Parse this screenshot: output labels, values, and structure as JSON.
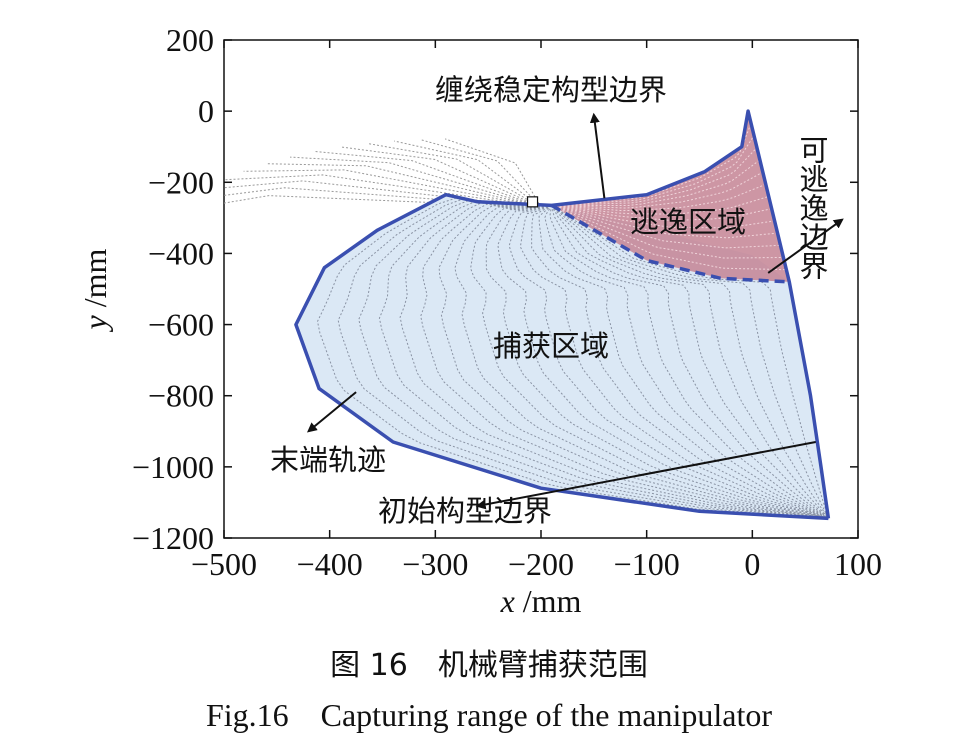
{
  "chart_data": {
    "type": "area",
    "xlabel_var": "x",
    "xlabel_unit": " /mm",
    "ylabel_var": "y",
    "ylabel_unit": " /mm",
    "xlim": [
      -500,
      100
    ],
    "ylim": [
      -1200,
      200
    ],
    "xticks": [
      -500,
      -400,
      -300,
      -200,
      -100,
      0,
      100
    ],
    "yticks": [
      200,
      0,
      -200,
      -400,
      -600,
      -800,
      -1000,
      -1200
    ],
    "xtick_labels": [
      "−500",
      "−400",
      "−300",
      "−200",
      "−100",
      "0",
      "100"
    ],
    "ytick_labels": [
      "200",
      "0",
      "−200",
      "−400",
      "−600",
      "−800",
      "−1000",
      "−1200"
    ],
    "grid": false,
    "regions": [
      {
        "name": "捕获区域",
        "fill": "#dbe8f5",
        "boundary": [
          [
            -290,
            -235
          ],
          [
            -260,
            -255
          ],
          [
            -190,
            -265
          ],
          [
            -100,
            -325
          ],
          [
            -60,
            -360
          ],
          [
            0,
            -405
          ],
          [
            35,
            -480
          ],
          [
            55,
            -800
          ],
          [
            65,
            -1000
          ],
          [
            72,
            -1145
          ],
          [
            -50,
            -1125
          ],
          [
            -200,
            -1060
          ],
          [
            -340,
            -930
          ],
          [
            -410,
            -780
          ],
          [
            -432,
            -600
          ],
          [
            -405,
            -440
          ],
          [
            -355,
            -335
          ]
        ]
      },
      {
        "name": "逃逸区域",
        "fill": "#c48494",
        "boundary": [
          [
            -190,
            -265
          ],
          [
            -100,
            -235
          ],
          [
            -45,
            -170
          ],
          [
            -10,
            -100
          ],
          [
            -4,
            0
          ],
          [
            35,
            -480
          ],
          [
            -30,
            -470
          ],
          [
            -100,
            -420
          ],
          [
            -190,
            -265
          ]
        ]
      }
    ],
    "end_trajectory": [
      [
        72,
        -1145
      ],
      [
        -50,
        -1125
      ],
      [
        -200,
        -1060
      ],
      [
        -340,
        -930
      ],
      [
        -410,
        -780
      ],
      [
        -432,
        -600
      ],
      [
        -405,
        -440
      ],
      [
        -355,
        -335
      ],
      [
        -290,
        -235
      ],
      [
        -260,
        -255
      ],
      [
        -190,
        -265
      ],
      [
        -100,
        -235
      ],
      [
        -45,
        -170
      ],
      [
        -10,
        -100
      ],
      [
        -4,
        0
      ],
      [
        35,
        -480
      ],
      [
        55,
        -800
      ],
      [
        65,
        -1000
      ],
      [
        72,
        -1145
      ]
    ],
    "escape_boundary_dashed": [
      [
        -190,
        -265
      ],
      [
        -100,
        -420
      ],
      [
        -30,
        -470
      ],
      [
        35,
        -480
      ]
    ],
    "initial_config_point": [
      60,
      -930
    ],
    "arm_sketch_origin": [
      -200,
      -270
    ],
    "annotations": [
      {
        "text": "缠绕稳定构型边界",
        "arrow_from": [
          -140,
          -245
        ],
        "arrow_to": [
          -150,
          -10
        ]
      },
      {
        "text": "逃逸区域"
      },
      {
        "text": "可逃逸边界",
        "arrow_from": [
          15,
          -455
        ],
        "arrow_to": [
          85,
          -305
        ]
      },
      {
        "text": "捕获区域"
      },
      {
        "text": "末端轨迹",
        "arrow_from": [
          -375,
          -790
        ],
        "arrow_to": [
          -420,
          -900
        ]
      },
      {
        "text": "初始构型边界",
        "arrow_from": [
          60,
          -930
        ],
        "arrow_to": [
          -260,
          -1110
        ]
      }
    ]
  },
  "caption_cn": "图 16　机械臂捕获范围",
  "caption_en": "Fig.16　Capturing range of the manipulator"
}
